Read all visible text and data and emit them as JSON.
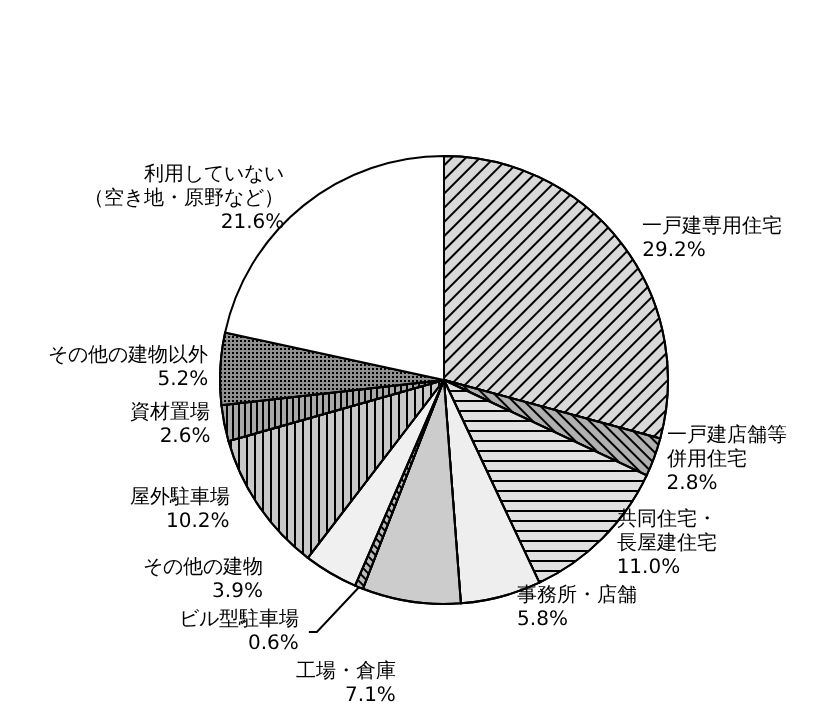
{
  "chart_data": {
    "type": "pie",
    "categories": [
      "一戸建専用住宅",
      "一戸建店舗等併用住宅",
      "共同住宅・長屋建住宅",
      "事務所・店舗",
      "工場・倉庫",
      "ビル型駐車場",
      "その他の建物",
      "屋外駐車場",
      "資材置場",
      "その他の建物以外",
      "利用していない（空き地・原野など）"
    ],
    "values": [
      29.2,
      2.8,
      11.0,
      5.8,
      7.1,
      0.6,
      3.9,
      10.2,
      2.6,
      5.2,
      21.6
    ],
    "value_labels": [
      "29.2%",
      "2.8%",
      "11.0%",
      "5.8%",
      "7.1%",
      "0.6%",
      "3.9%",
      "10.2%",
      "2.6%",
      "5.2%",
      "21.6%"
    ],
    "colors": [
      "#d9d9d9",
      "#b0b0b0",
      "#e0e0e0",
      "#eeeeee",
      "#cccccc",
      "#bbbbbb",
      "#f0f0f0",
      "#c8c8c8",
      "#a8a8a8",
      "#909090",
      "#ffffff"
    ],
    "legend": false
  }
}
